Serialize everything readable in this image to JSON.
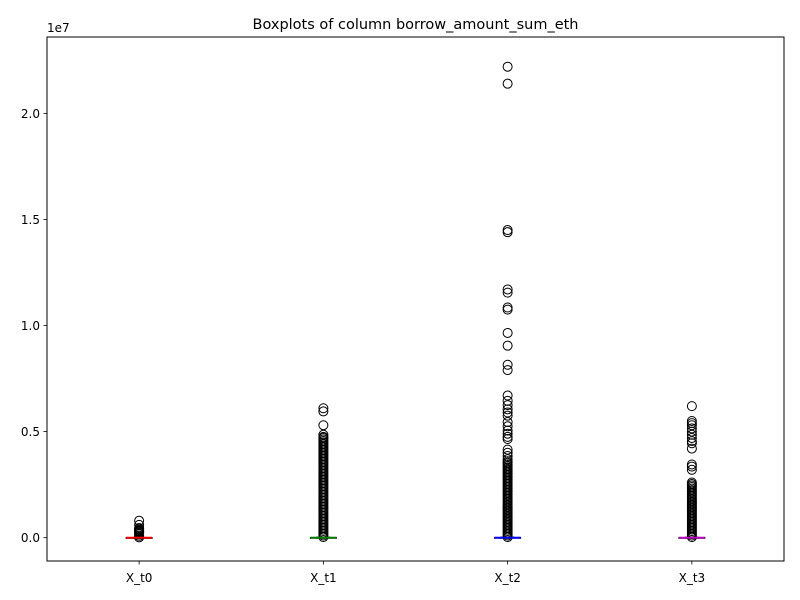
{
  "chart_data": {
    "type": "box",
    "title": "Boxplots of column borrow_amount_sum_eth",
    "xlabel": "",
    "ylabel": "",
    "y_offset_label": "1e7",
    "y_scale": 10000000,
    "ylim": [
      -1100000,
      23600000
    ],
    "yticks": [
      0,
      5000000,
      10000000,
      15000000,
      20000000
    ],
    "ytick_labels": [
      "0.0",
      "0.5",
      "1.0",
      "1.5",
      "2.0"
    ],
    "categories": [
      "X_t0",
      "X_t1",
      "X_t2",
      "X_t3"
    ],
    "series": [
      {
        "category": "X_t0",
        "median_color": "#ff0000",
        "q1": 0,
        "median": 0,
        "q3": 5000,
        "whisker_low": 0,
        "whisker_high": 12000,
        "outlier_range": [
          15000,
          450000
        ],
        "outliers": [
          800000,
          600000,
          450000,
          380000,
          330000,
          280000,
          230000
        ]
      },
      {
        "category": "X_t1",
        "median_color": "#008000",
        "q1": 0,
        "median": 0,
        "q3": 10000,
        "whisker_low": 0,
        "whisker_high": 25000,
        "outlier_range": [
          30000,
          4700000
        ],
        "outliers": [
          6100000,
          5950000,
          5300000,
          4850000,
          4750000
        ]
      },
      {
        "category": "X_t2",
        "median_color": "#0000ff",
        "q1": 0,
        "median": 0,
        "q3": 10000,
        "whisker_low": 0,
        "whisker_high": 25000,
        "outlier_range": [
          30000,
          3600000
        ],
        "outliers": [
          22200000,
          21400000,
          14500000,
          14400000,
          11700000,
          11550000,
          10850000,
          10750000,
          9650000,
          9050000,
          8150000,
          7900000,
          6700000,
          6450000,
          6250000,
          6050000,
          5900000,
          5750000,
          5450000,
          5250000,
          5050000,
          4900000,
          4750000,
          4650000,
          4150000,
          4000000,
          3850000,
          3700000
        ]
      },
      {
        "category": "X_t3",
        "median_color": "#bf00bf",
        "q1": 0,
        "median": 0,
        "q3": 8000,
        "whisker_low": 0,
        "whisker_high": 20000,
        "outlier_range": [
          25000,
          2600000
        ],
        "outliers": [
          6200000,
          5500000,
          5400000,
          5300000,
          5150000,
          5000000,
          4850000,
          4700000,
          4550000,
          4450000,
          4200000,
          3450000,
          3350000,
          3200000
        ]
      }
    ],
    "grid": false
  }
}
